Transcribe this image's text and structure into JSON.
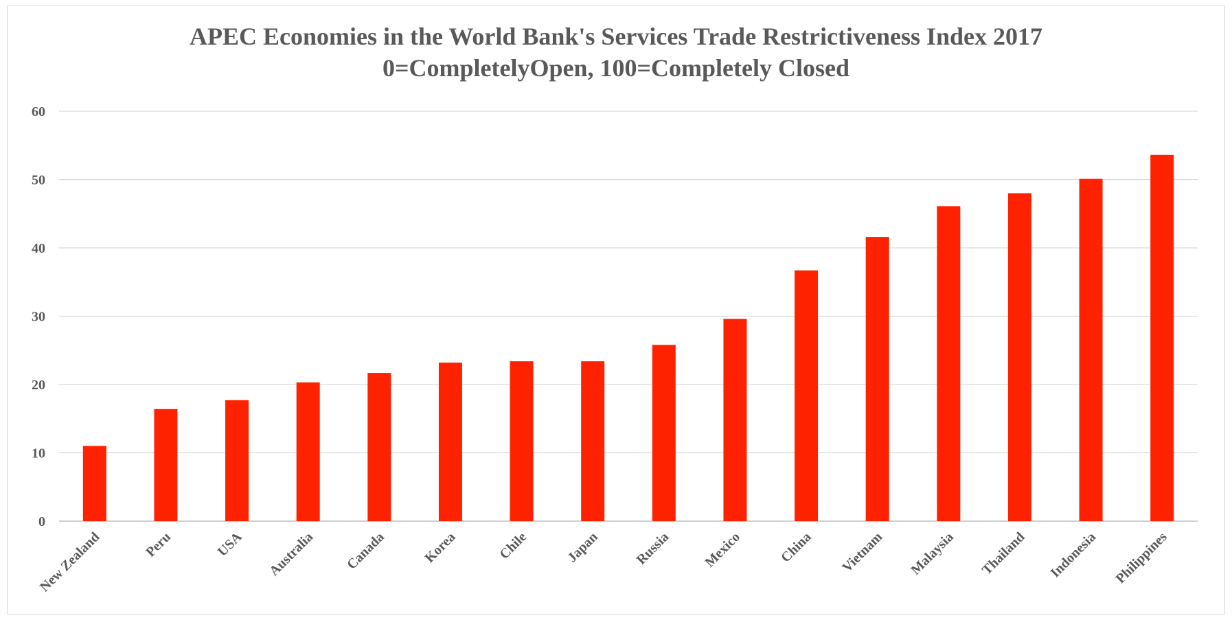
{
  "chart_data": {
    "type": "bar",
    "title": "APEC Economies in the World Bank's Services Trade Restrictiveness Index 2017",
    "subtitle": "0=CompletelyOpen, 100=Completely Closed",
    "xlabel": "",
    "ylabel": "",
    "categories": [
      "New Zealand",
      "Peru",
      "USA",
      "Australia",
      "Canada",
      "Korea",
      "Chile",
      "Japan",
      "Russia",
      "Mexico",
      "China",
      "Vietnam",
      "Malaysia",
      "Thailand",
      "Indonesia",
      "Philippines"
    ],
    "values": [
      11.0,
      16.4,
      17.7,
      20.3,
      21.7,
      23.2,
      23.4,
      23.4,
      25.8,
      29.6,
      36.7,
      41.6,
      46.1,
      48.0,
      50.1,
      53.6
    ],
    "ylim": [
      0,
      60
    ],
    "yticks": [
      0,
      10,
      20,
      30,
      40,
      50,
      60
    ],
    "grid": true,
    "legend": "none",
    "bar_color": "#ff2200"
  }
}
